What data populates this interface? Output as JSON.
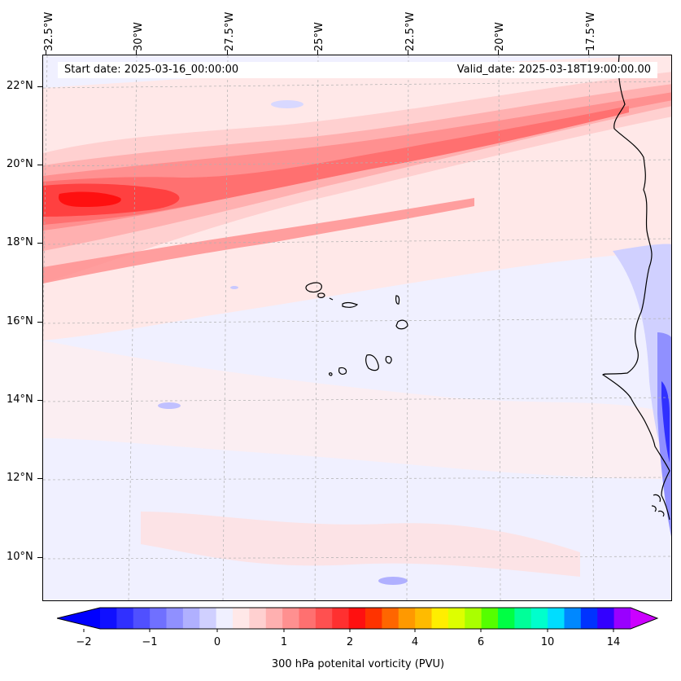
{
  "map": {
    "start_date": "Start date: 2025-03-16_00:00:00",
    "valid_date": "Valid_date: 2025-03-18T19:00:00.00",
    "lon_labels": [
      "32.5°W",
      "30°W",
      "27.5°W",
      "25°W",
      "22.5°W",
      "20°W",
      "17.5°W"
    ],
    "lat_labels": [
      "22°N",
      "20°N",
      "18°N",
      "16°N",
      "14°N",
      "12°N",
      "10°N"
    ]
  },
  "colorbar": {
    "title": "300 hPa potenital vorticity (PVU)",
    "tick_labels": [
      "−2",
      "−1",
      "0",
      "1",
      "2",
      "4",
      "6",
      "10",
      "14"
    ],
    "colors": [
      "#1010ff",
      "#3030ff",
      "#5050ff",
      "#7070ff",
      "#9090ff",
      "#b0b0ff",
      "#d0d0ff",
      "#f0f0ff",
      "#ffe8e8",
      "#ffd0d0",
      "#ffb0b0",
      "#ff9090",
      "#ff7070",
      "#ff5050",
      "#ff3030",
      "#ff1010",
      "#ff3300",
      "#ff6600",
      "#ff9900",
      "#ffbb00",
      "#ffee00",
      "#ddff00",
      "#aaff00",
      "#55ff00",
      "#00ff44",
      "#00ff99",
      "#00ffcc",
      "#00ddff",
      "#0088ff",
      "#0033ff",
      "#3300ff",
      "#9900ff"
    ],
    "min_arrow_color": "#0000ff",
    "max_arrow_color": "#cc00ff"
  }
}
